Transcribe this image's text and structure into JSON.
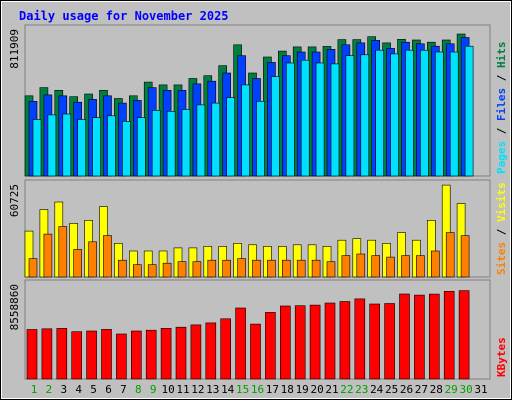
{
  "title": "Daily usage for November 2025",
  "colors": {
    "background": "#C0C0C0",
    "title": "#0000FF",
    "hits": "#008040",
    "files": "#0040FF",
    "pages": "#00E0FF",
    "visits": "#FFFF00",
    "sites": "#FF8000",
    "kbytes": "#FF0000",
    "weekday_label": "#008040",
    "weekend_label": "#00A000",
    "max_label": "#000000"
  },
  "chart_data": [
    {
      "type": "bar",
      "name": "hits-files-pages",
      "x": [
        "1",
        "2",
        "3",
        "4",
        "5",
        "6",
        "7",
        "8",
        "9",
        "10",
        "11",
        "12",
        "13",
        "14",
        "15",
        "16",
        "17",
        "18",
        "19",
        "20",
        "21",
        "22",
        "23",
        "24",
        "25",
        "26",
        "27",
        "28",
        "29",
        "30",
        "31"
      ],
      "weekend_days": [
        "1",
        "2",
        "8",
        "9",
        "15",
        "16",
        "22",
        "23",
        "29",
        "30"
      ],
      "scale_label": "811909",
      "ylim": [
        0,
        811909
      ],
      "right_labels": [
        "Pages",
        "Files",
        "Hits"
      ],
      "series": [
        {
          "name": "Hits",
          "values": [
            440000,
            485000,
            470000,
            435000,
            450000,
            470000,
            425000,
            440000,
            515000,
            500000,
            500000,
            535000,
            550000,
            605000,
            720000,
            565000,
            653000,
            685000,
            708000,
            708000,
            711000,
            748000,
            748000,
            764000,
            730000,
            750000,
            746000,
            734000,
            746000,
            779000,
            0
          ]
        },
        {
          "name": "Files",
          "values": [
            410000,
            445000,
            440000,
            405000,
            420000,
            440000,
            400000,
            415000,
            485000,
            470000,
            470000,
            505000,
            520000,
            565000,
            660000,
            535000,
            623000,
            660000,
            680000,
            680000,
            695000,
            720000,
            730000,
            744000,
            700000,
            734000,
            725000,
            712000,
            725000,
            760000,
            0
          ]
        },
        {
          "name": "Pages",
          "values": [
            310000,
            335000,
            340000,
            310000,
            320000,
            330000,
            300000,
            320000,
            360000,
            355000,
            365000,
            390000,
            400000,
            430000,
            500000,
            410000,
            545000,
            620000,
            635000,
            620000,
            615000,
            660000,
            665000,
            690000,
            670000,
            690000,
            690000,
            680000,
            680000,
            712000,
            0
          ]
        }
      ]
    },
    {
      "type": "bar",
      "name": "visits-sites",
      "x": [
        "1",
        "2",
        "3",
        "4",
        "5",
        "6",
        "7",
        "8",
        "9",
        "10",
        "11",
        "12",
        "13",
        "14",
        "15",
        "16",
        "17",
        "18",
        "19",
        "20",
        "21",
        "22",
        "23",
        "24",
        "25",
        "26",
        "27",
        "28",
        "29",
        "30",
        "31"
      ],
      "scale_label": "60725",
      "ylim": [
        0,
        60725
      ],
      "right_labels": [
        "Sites",
        "Visits"
      ],
      "series": [
        {
          "name": "Visits",
          "values": [
            30000,
            44000,
            49000,
            35000,
            37000,
            46000,
            22000,
            17000,
            17000,
            17000,
            19000,
            19000,
            20000,
            20000,
            22000,
            21000,
            20000,
            20000,
            21000,
            21000,
            20000,
            24000,
            25000,
            24000,
            22000,
            29000,
            24000,
            37000,
            60000,
            48000,
            0
          ]
        },
        {
          "name": "Sites",
          "values": [
            12000,
            28000,
            33000,
            18000,
            23000,
            27000,
            11000,
            8000,
            8000,
            9000,
            10000,
            10000,
            11000,
            11000,
            12000,
            11000,
            11000,
            11000,
            11000,
            11000,
            10000,
            14000,
            15000,
            14000,
            13000,
            14000,
            14000,
            17000,
            29000,
            27000,
            0
          ]
        }
      ]
    },
    {
      "type": "bar",
      "name": "kbytes",
      "x": [
        "1",
        "2",
        "3",
        "4",
        "5",
        "6",
        "7",
        "8",
        "9",
        "10",
        "11",
        "12",
        "13",
        "14",
        "15",
        "16",
        "17",
        "18",
        "19",
        "20",
        "21",
        "22",
        "23",
        "24",
        "25",
        "26",
        "27",
        "28",
        "29",
        "30",
        "31"
      ],
      "scale_label": "8558860",
      "ylim": [
        0,
        8558860
      ],
      "right_labels": [
        "KBytes"
      ],
      "series": [
        {
          "name": "KBytes",
          "values": [
            4460000,
            4520000,
            4560000,
            4260000,
            4320000,
            4470000,
            4050000,
            4320000,
            4400000,
            4570000,
            4670000,
            4870000,
            5050000,
            5420000,
            6400000,
            4950000,
            6000000,
            6580000,
            6600000,
            6660000,
            6850000,
            6980000,
            7220000,
            6760000,
            6800000,
            7660000,
            7560000,
            7650000,
            7900000,
            7960000,
            0
          ]
        }
      ]
    }
  ]
}
